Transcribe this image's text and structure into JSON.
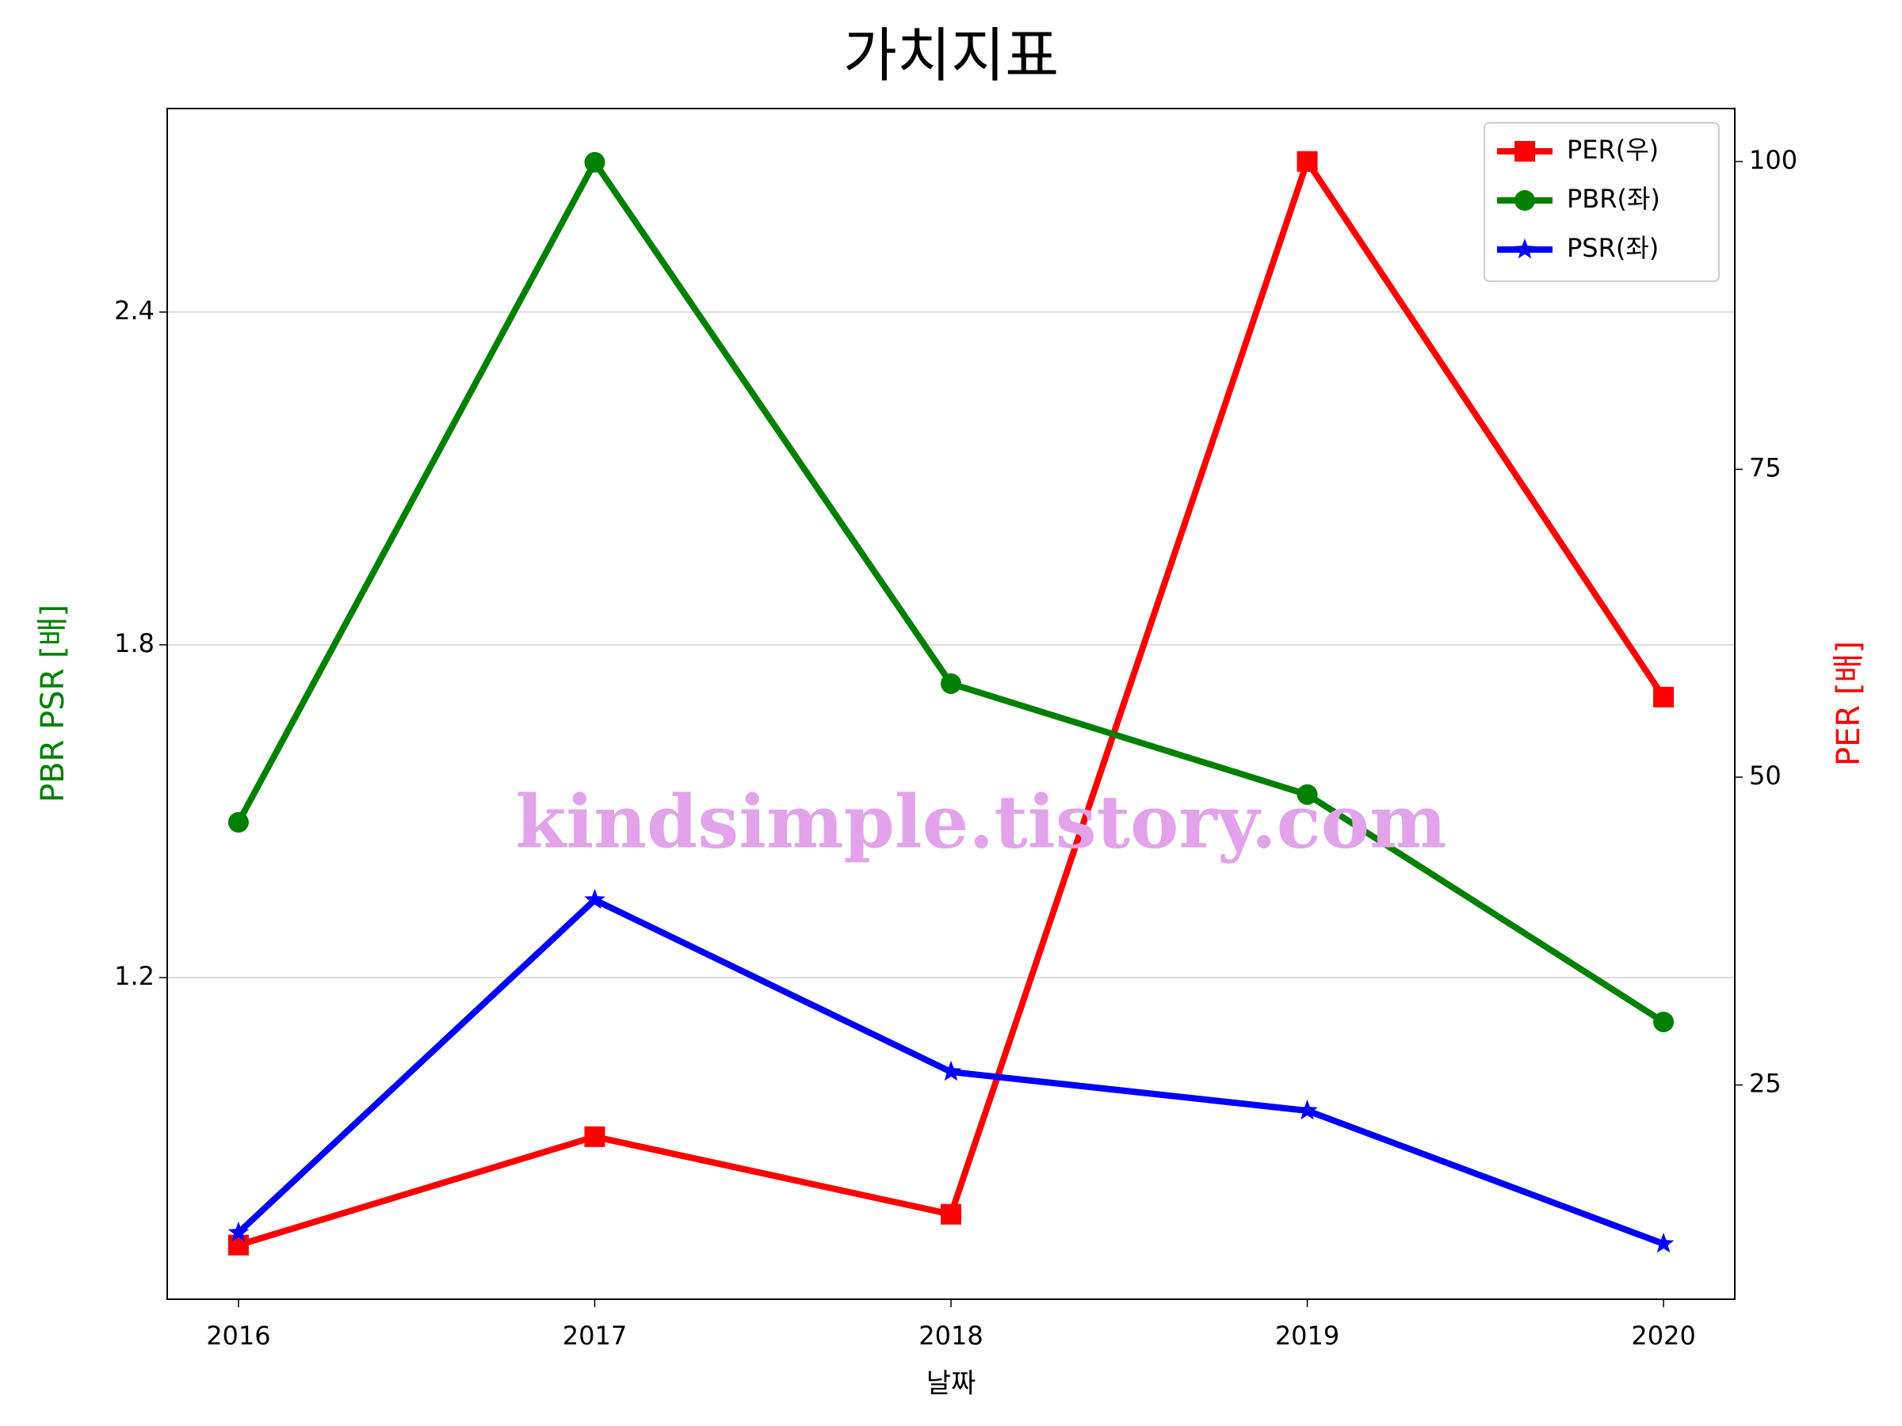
{
  "chart_data": {
    "type": "line",
    "title": "가치지표",
    "xlabel": "날짜",
    "ylabel": "PBR PSR [배]",
    "y2label": "PER [배]",
    "annotation": "kindsimple.tistory.com",
    "x": [
      2016,
      2017,
      2018,
      2019,
      2020
    ],
    "xlim": [
      2015.8,
      2020.2
    ],
    "xticks": [
      2016,
      2017,
      2018,
      2019,
      2020
    ],
    "ylim": [
      0.62,
      2.767
    ],
    "yticks": [
      1.2,
      1.8,
      2.4
    ],
    "y2lim": [
      7.6,
      104.3
    ],
    "y2ticks": [
      25,
      50,
      75,
      100
    ],
    "grid": true,
    "legend": "upper right",
    "series": [
      {
        "name": "PER(우)",
        "color": "#ff0000",
        "marker": "square",
        "axis": "y2",
        "values": [
          12.0,
          20.8,
          14.5,
          100,
          56.5
        ]
      },
      {
        "name": "PBR(좌)",
        "color": "#008000",
        "marker": "circle",
        "axis": "y",
        "values": [
          1.48,
          2.67,
          1.73,
          1.53,
          1.12
        ]
      },
      {
        "name": "PSR(좌)",
        "color": "#0000ff",
        "marker": "star",
        "axis": "y",
        "values": [
          0.74,
          1.34,
          1.03,
          0.96,
          0.72
        ]
      }
    ]
  }
}
